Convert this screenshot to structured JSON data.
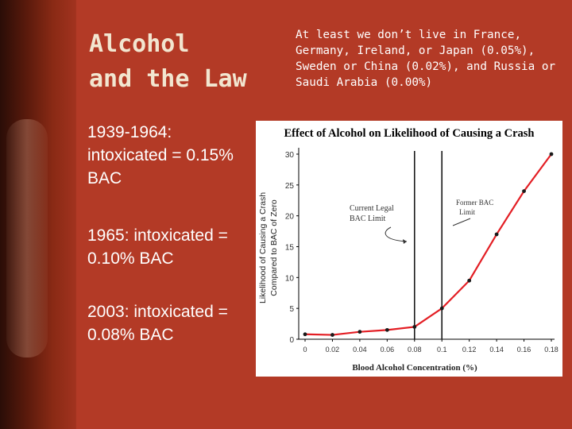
{
  "slide": {
    "title": "Alcohol\nand the Law",
    "subtitle": "At least we don’t live in France, Germany, Ireland, or Japan (0.05%), Sweden or China (0.02%), and Russia or Saudi Arabia (0.00%)",
    "points": [
      "1939-1964: intoxicated = 0.15% BAC",
      "1965: intoxicated = 0.10% BAC",
      "2003: intoxicated = 0.08% BAC"
    ]
  },
  "chart_data": {
    "type": "line",
    "title": "Effect of Alcohol on Likelihood of Causing a Crash",
    "xlabel": "Blood Alcohol Concentration (%)",
    "ylabel": "Likelihood of Causing a Crash",
    "ylabel2": "Compared to BAC of Zero",
    "x_ticks": [
      "0",
      "0.02",
      "0.04",
      "0.06",
      "0.08",
      "0.1",
      "0.12",
      "0.14",
      "0.16",
      "0.18"
    ],
    "y_ticks": [
      "0",
      "5",
      "10",
      "15",
      "20",
      "25",
      "30"
    ],
    "xlim": [
      0,
      0.18
    ],
    "ylim": [
      0,
      30
    ],
    "grid": false,
    "series": [
      {
        "x": [
          0,
          0.02,
          0.04,
          0.06,
          0.08,
          0.1,
          0.12,
          0.14,
          0.16,
          0.18
        ],
        "y": [
          0.8,
          0.7,
          1.2,
          1.5,
          2.0,
          5.0,
          9.5,
          17.0,
          24.0,
          30.0
        ]
      }
    ],
    "reference_lines": [
      {
        "x": 0.08,
        "label": "Current Legal BAC Limit"
      },
      {
        "x": 0.1,
        "label": "Former BAC Limit"
      }
    ],
    "colors": {
      "line": "#e31e24",
      "marker": "#1a1a1a",
      "reference": "#1a1a1a"
    }
  }
}
